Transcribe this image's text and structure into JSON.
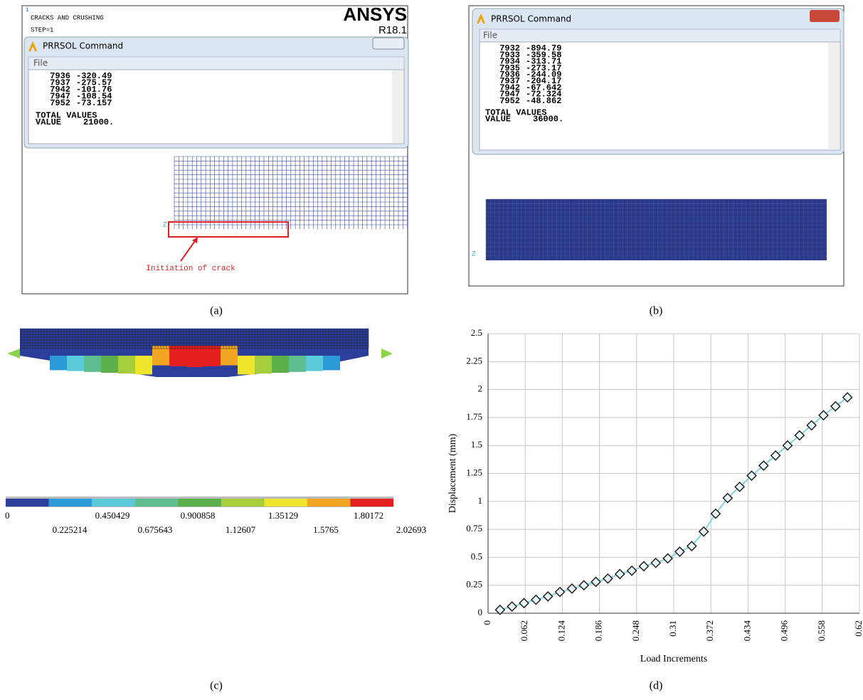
{
  "panels": {
    "a": {
      "index": "1",
      "title": "CRACKS AND CRUSHING",
      "step": "STEP=1",
      "brand": "ANSYS",
      "version": "R18.1",
      "window_title": "PRRSOL  Command",
      "menu": "File",
      "rows": [
        [
          7936,
          -320.49
        ],
        [
          7937,
          -275.57
        ],
        [
          7942,
          -101.76
        ],
        [
          7947,
          -108.54
        ],
        [
          7952,
          -73.157
        ]
      ],
      "total_label": "TOTAL VALUES",
      "value_label": "VALUE",
      "total_value": "21000.",
      "axis_z": "Z",
      "annotation": "Initiation of crack",
      "caption": "(a)"
    },
    "b": {
      "window_title": "PRRSOL  Command",
      "menu": "File",
      "rows": [
        [
          7932,
          -894.79
        ],
        [
          7933,
          -359.58
        ],
        [
          7934,
          -313.71
        ],
        [
          7935,
          -273.17
        ],
        [
          7936,
          -244.09
        ],
        [
          7937,
          -204.17
        ],
        [
          7942,
          -67.642
        ],
        [
          7947,
          -72.324
        ],
        [
          7952,
          -48.862
        ]
      ],
      "total_label": "TOTAL VALUES",
      "value_label": "VALUE",
      "total_value": "36000.",
      "axis_z": "Z",
      "caption": "(b)"
    },
    "c": {
      "legend_values": [
        0,
        0.225214,
        0.450429,
        0.675643,
        0.900858,
        1.12607,
        1.35129,
        1.5765,
        1.80172,
        2.02693
      ],
      "legend_colors": [
        "#2b3f9a",
        "#2c9ad9",
        "#5ccbd9",
        "#5dbd8f",
        "#5bb04a",
        "#a6cd3a",
        "#efe52c",
        "#f2a623",
        "#e4201f"
      ],
      "caption": "(c)"
    },
    "d": {
      "chart": {
        "type": "line",
        "x_label": "Load Increments",
        "y_label": "Displacement (mm)",
        "x": [
          0.02,
          0.04,
          0.06,
          0.08,
          0.1,
          0.12,
          0.14,
          0.16,
          0.18,
          0.2,
          0.22,
          0.24,
          0.26,
          0.28,
          0.3,
          0.32,
          0.34,
          0.36,
          0.38,
          0.4,
          0.42,
          0.44,
          0.46,
          0.48,
          0.5,
          0.52,
          0.54,
          0.56,
          0.58,
          0.6
        ],
        "values": [
          0.03,
          0.06,
          0.09,
          0.12,
          0.15,
          0.19,
          0.22,
          0.25,
          0.28,
          0.31,
          0.35,
          0.38,
          0.42,
          0.45,
          0.49,
          0.55,
          0.6,
          0.73,
          0.89,
          1.03,
          1.13,
          1.23,
          1.32,
          1.41,
          1.5,
          1.59,
          1.68,
          1.77,
          1.85,
          1.93
        ],
        "color": "#7fd3e0",
        "xlim": [
          0,
          0.62
        ],
        "ylim": [
          0,
          2.5
        ],
        "xticks": [
          0,
          0.062,
          0.124,
          0.186,
          0.248,
          0.31,
          0.372,
          0.434,
          0.496,
          0.558,
          0.62
        ],
        "yticks": [
          0,
          0.25,
          0.5,
          0.75,
          1,
          1.25,
          1.5,
          1.75,
          2,
          2.25,
          2.5
        ],
        "grid": true
      },
      "caption": "(d)"
    }
  }
}
